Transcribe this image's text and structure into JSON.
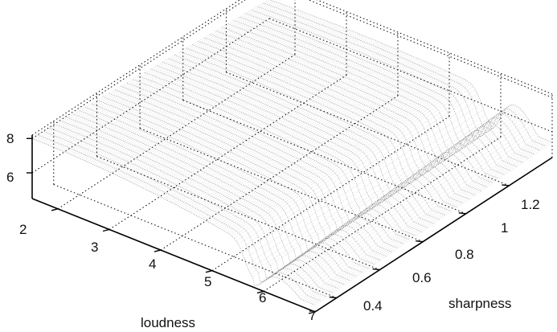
{
  "chart_data": {
    "type": "surface3d",
    "title": "",
    "xlabel": "loudness",
    "ylabel": "sharpness",
    "zlabel": "",
    "x_ticks": [
      "2",
      "3",
      "4",
      "5",
      "6",
      "7"
    ],
    "y_ticks": [
      "0.4",
      "0.6",
      "0.8",
      "1",
      "1.2"
    ],
    "z_ticks": [
      "6",
      "8"
    ],
    "xlim": [
      1.5,
      7
    ],
    "ylim": [
      0.3,
      1.4
    ],
    "zlim": [
      4.5,
      8.2
    ],
    "grid": true,
    "surface": {
      "description_values": "approximate peak heights",
      "left_ridge_peak_z": 8.0,
      "right_ridge_peak_z": 6.7,
      "valley_loudness": 5.8,
      "color": "#222222"
    }
  }
}
